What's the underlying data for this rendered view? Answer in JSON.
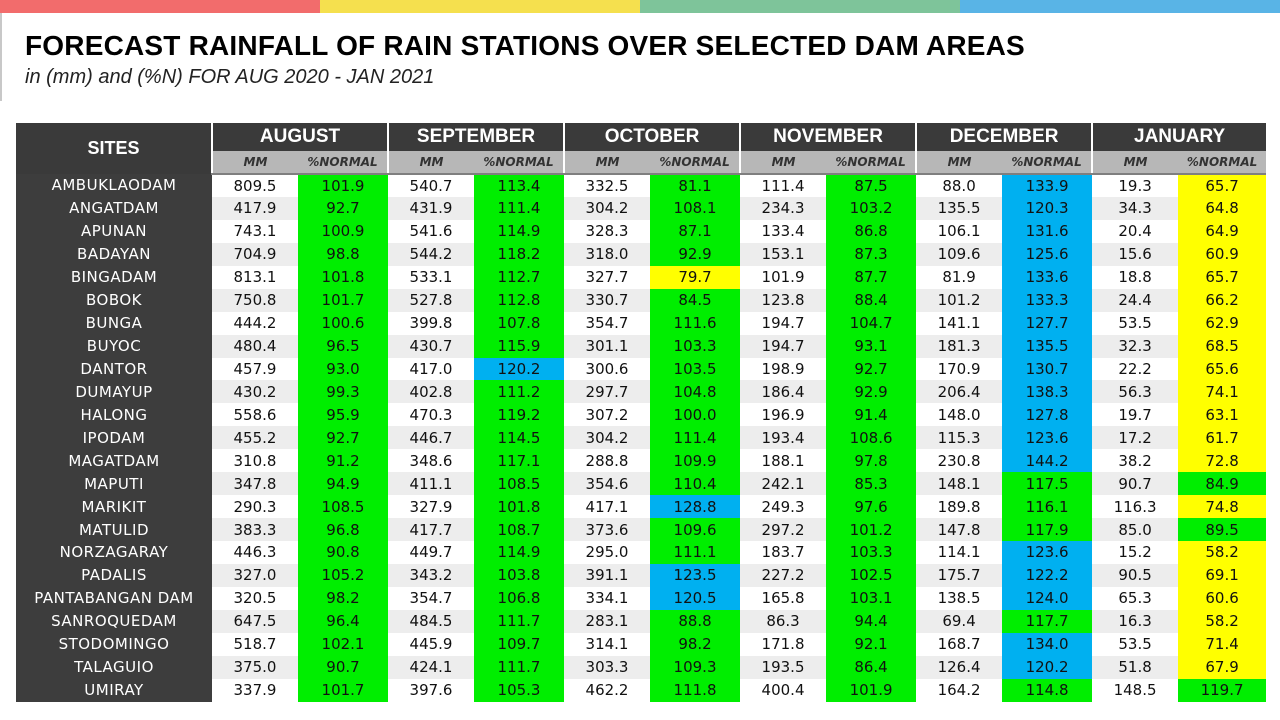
{
  "colors": {
    "top_bar": [
      "#f26c6c",
      "#f5e04e",
      "#7ec49a",
      "#59b4e6"
    ],
    "legend_fill": {
      "g": "#00ee00",
      "b": "#00b0f0",
      "y": "#ffff00"
    },
    "header_dark": "#3a3a3a",
    "subheader_grey": "#b7b7b7"
  },
  "title": "FORECAST RAINFALL OF RAIN STATIONS OVER SELECTED DAM AREAS",
  "subtitle": "in (mm) and (%N) FOR AUG 2020 - JAN 2021",
  "table": {
    "sites_header": "SITES",
    "months": [
      "AUGUST",
      "SEPTEMBER",
      "OCTOBER",
      "NOVEMBER",
      "DECEMBER",
      "JANUARY"
    ],
    "subheaders": [
      "MM",
      "%NORMAL"
    ],
    "rows": [
      {
        "site": "AMBUKLAODAM",
        "cells": [
          [
            "809.5",
            "101.9",
            "g"
          ],
          [
            "540.7",
            "113.4",
            "g"
          ],
          [
            "332.5",
            "81.1",
            "g"
          ],
          [
            "111.4",
            "87.5",
            "g"
          ],
          [
            "88.0",
            "133.9",
            "b"
          ],
          [
            "19.3",
            "65.7",
            "y"
          ]
        ]
      },
      {
        "site": "ANGATDAM",
        "cells": [
          [
            "417.9",
            "92.7",
            "g"
          ],
          [
            "431.9",
            "111.4",
            "g"
          ],
          [
            "304.2",
            "108.1",
            "g"
          ],
          [
            "234.3",
            "103.2",
            "g"
          ],
          [
            "135.5",
            "120.3",
            "b"
          ],
          [
            "34.3",
            "64.8",
            "y"
          ]
        ]
      },
      {
        "site": "APUNAN",
        "cells": [
          [
            "743.1",
            "100.9",
            "g"
          ],
          [
            "541.6",
            "114.9",
            "g"
          ],
          [
            "328.3",
            "87.1",
            "g"
          ],
          [
            "133.4",
            "86.8",
            "g"
          ],
          [
            "106.1",
            "131.6",
            "b"
          ],
          [
            "20.4",
            "64.9",
            "y"
          ]
        ]
      },
      {
        "site": "BADAYAN",
        "cells": [
          [
            "704.9",
            "98.8",
            "g"
          ],
          [
            "544.2",
            "118.2",
            "g"
          ],
          [
            "318.0",
            "92.9",
            "g"
          ],
          [
            "153.1",
            "87.3",
            "g"
          ],
          [
            "109.6",
            "125.6",
            "b"
          ],
          [
            "15.6",
            "60.9",
            "y"
          ]
        ]
      },
      {
        "site": "BINGADAM",
        "cells": [
          [
            "813.1",
            "101.8",
            "g"
          ],
          [
            "533.1",
            "112.7",
            "g"
          ],
          [
            "327.7",
            "79.7",
            "y"
          ],
          [
            "101.9",
            "87.7",
            "g"
          ],
          [
            "81.9",
            "133.6",
            "b"
          ],
          [
            "18.8",
            "65.7",
            "y"
          ]
        ]
      },
      {
        "site": "BOBOK",
        "cells": [
          [
            "750.8",
            "101.7",
            "g"
          ],
          [
            "527.8",
            "112.8",
            "g"
          ],
          [
            "330.7",
            "84.5",
            "g"
          ],
          [
            "123.8",
            "88.4",
            "g"
          ],
          [
            "101.2",
            "133.3",
            "b"
          ],
          [
            "24.4",
            "66.2",
            "y"
          ]
        ]
      },
      {
        "site": "BUNGA",
        "cells": [
          [
            "444.2",
            "100.6",
            "g"
          ],
          [
            "399.8",
            "107.8",
            "g"
          ],
          [
            "354.7",
            "111.6",
            "g"
          ],
          [
            "194.7",
            "104.7",
            "g"
          ],
          [
            "141.1",
            "127.7",
            "b"
          ],
          [
            "53.5",
            "62.9",
            "y"
          ]
        ]
      },
      {
        "site": "BUYOC",
        "cells": [
          [
            "480.4",
            "96.5",
            "g"
          ],
          [
            "430.7",
            "115.9",
            "g"
          ],
          [
            "301.1",
            "103.3",
            "g"
          ],
          [
            "194.7",
            "93.1",
            "g"
          ],
          [
            "181.3",
            "135.5",
            "b"
          ],
          [
            "32.3",
            "68.5",
            "y"
          ]
        ]
      },
      {
        "site": "DANTOR",
        "cells": [
          [
            "457.9",
            "93.0",
            "g"
          ],
          [
            "417.0",
            "120.2",
            "b"
          ],
          [
            "300.6",
            "103.5",
            "g"
          ],
          [
            "198.9",
            "92.7",
            "g"
          ],
          [
            "170.9",
            "130.7",
            "b"
          ],
          [
            "22.2",
            "65.6",
            "y"
          ]
        ]
      },
      {
        "site": "DUMAYUP",
        "cells": [
          [
            "430.2",
            "99.3",
            "g"
          ],
          [
            "402.8",
            "111.2",
            "g"
          ],
          [
            "297.7",
            "104.8",
            "g"
          ],
          [
            "186.4",
            "92.9",
            "g"
          ],
          [
            "206.4",
            "138.3",
            "b"
          ],
          [
            "56.3",
            "74.1",
            "y"
          ]
        ]
      },
      {
        "site": "HALONG",
        "cells": [
          [
            "558.6",
            "95.9",
            "g"
          ],
          [
            "470.3",
            "119.2",
            "g"
          ],
          [
            "307.2",
            "100.0",
            "g"
          ],
          [
            "196.9",
            "91.4",
            "g"
          ],
          [
            "148.0",
            "127.8",
            "b"
          ],
          [
            "19.7",
            "63.1",
            "y"
          ]
        ]
      },
      {
        "site": "IPODAM",
        "cells": [
          [
            "455.2",
            "92.7",
            "g"
          ],
          [
            "446.7",
            "114.5",
            "g"
          ],
          [
            "304.2",
            "111.4",
            "g"
          ],
          [
            "193.4",
            "108.6",
            "g"
          ],
          [
            "115.3",
            "123.6",
            "b"
          ],
          [
            "17.2",
            "61.7",
            "y"
          ]
        ]
      },
      {
        "site": "MAGATDAM",
        "cells": [
          [
            "310.8",
            "91.2",
            "g"
          ],
          [
            "348.6",
            "117.1",
            "g"
          ],
          [
            "288.8",
            "109.9",
            "g"
          ],
          [
            "188.1",
            "97.8",
            "g"
          ],
          [
            "230.8",
            "144.2",
            "b"
          ],
          [
            "38.2",
            "72.8",
            "y"
          ]
        ]
      },
      {
        "site": "MAPUTI",
        "cells": [
          [
            "347.8",
            "94.9",
            "g"
          ],
          [
            "411.1",
            "108.5",
            "g"
          ],
          [
            "354.6",
            "110.4",
            "g"
          ],
          [
            "242.1",
            "85.3",
            "g"
          ],
          [
            "148.1",
            "117.5",
            "g"
          ],
          [
            "90.7",
            "84.9",
            "g"
          ]
        ]
      },
      {
        "site": "MARIKIT",
        "cells": [
          [
            "290.3",
            "108.5",
            "g"
          ],
          [
            "327.9",
            "101.8",
            "g"
          ],
          [
            "417.1",
            "128.8",
            "b"
          ],
          [
            "249.3",
            "97.6",
            "g"
          ],
          [
            "189.8",
            "116.1",
            "g"
          ],
          [
            "116.3",
            "74.8",
            "y"
          ]
        ]
      },
      {
        "site": "MATULID",
        "cells": [
          [
            "383.3",
            "96.8",
            "g"
          ],
          [
            "417.7",
            "108.7",
            "g"
          ],
          [
            "373.6",
            "109.6",
            "g"
          ],
          [
            "297.2",
            "101.2",
            "g"
          ],
          [
            "147.8",
            "117.9",
            "g"
          ],
          [
            "85.0",
            "89.5",
            "g"
          ]
        ]
      },
      {
        "site": "NORZAGARAY",
        "cells": [
          [
            "446.3",
            "90.8",
            "g"
          ],
          [
            "449.7",
            "114.9",
            "g"
          ],
          [
            "295.0",
            "111.1",
            "g"
          ],
          [
            "183.7",
            "103.3",
            "g"
          ],
          [
            "114.1",
            "123.6",
            "b"
          ],
          [
            "15.2",
            "58.2",
            "y"
          ]
        ]
      },
      {
        "site": "PADALIS",
        "cells": [
          [
            "327.0",
            "105.2",
            "g"
          ],
          [
            "343.2",
            "103.8",
            "g"
          ],
          [
            "391.1",
            "123.5",
            "b"
          ],
          [
            "227.2",
            "102.5",
            "g"
          ],
          [
            "175.7",
            "122.2",
            "b"
          ],
          [
            "90.5",
            "69.1",
            "y"
          ]
        ]
      },
      {
        "site": "PANTABANGAN DAM",
        "cells": [
          [
            "320.5",
            "98.2",
            "g"
          ],
          [
            "354.7",
            "106.8",
            "g"
          ],
          [
            "334.1",
            "120.5",
            "b"
          ],
          [
            "165.8",
            "103.1",
            "g"
          ],
          [
            "138.5",
            "124.0",
            "b"
          ],
          [
            "65.3",
            "60.6",
            "y"
          ]
        ]
      },
      {
        "site": "SANROQUEDAM",
        "cells": [
          [
            "647.5",
            "96.4",
            "g"
          ],
          [
            "484.5",
            "111.7",
            "g"
          ],
          [
            "283.1",
            "88.8",
            "g"
          ],
          [
            "86.3",
            "94.4",
            "g"
          ],
          [
            "69.4",
            "117.7",
            "g"
          ],
          [
            "16.3",
            "58.2",
            "y"
          ]
        ]
      },
      {
        "site": "STODOMINGO",
        "cells": [
          [
            "518.7",
            "102.1",
            "g"
          ],
          [
            "445.9",
            "109.7",
            "g"
          ],
          [
            "314.1",
            "98.2",
            "g"
          ],
          [
            "171.8",
            "92.1",
            "g"
          ],
          [
            "168.7",
            "134.0",
            "b"
          ],
          [
            "53.5",
            "71.4",
            "y"
          ]
        ]
      },
      {
        "site": "TALAGUIO",
        "cells": [
          [
            "375.0",
            "90.7",
            "g"
          ],
          [
            "424.1",
            "111.7",
            "g"
          ],
          [
            "303.3",
            "109.3",
            "g"
          ],
          [
            "193.5",
            "86.4",
            "g"
          ],
          [
            "126.4",
            "120.2",
            "b"
          ],
          [
            "51.8",
            "67.9",
            "y"
          ]
        ]
      },
      {
        "site": "UMIRAY",
        "cells": [
          [
            "337.9",
            "101.7",
            "g"
          ],
          [
            "397.6",
            "105.3",
            "g"
          ],
          [
            "462.2",
            "111.8",
            "g"
          ],
          [
            "400.4",
            "101.9",
            "g"
          ],
          [
            "164.2",
            "114.8",
            "g"
          ],
          [
            "148.5",
            "119.7",
            "g"
          ]
        ]
      }
    ]
  }
}
